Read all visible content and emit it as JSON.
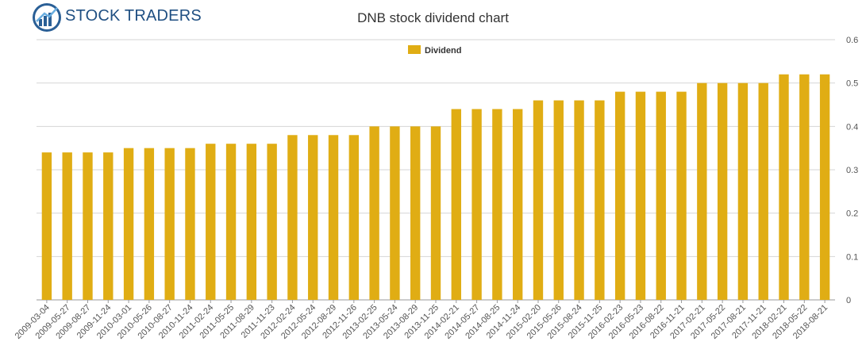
{
  "brand": {
    "name": "STOCK TRADERS"
  },
  "chart_data": {
    "type": "bar",
    "title": "DNB stock dividend chart",
    "xlabel": "",
    "ylabel": "",
    "ylim": [
      0,
      0.6
    ],
    "yticks": [
      "0",
      "0.1",
      "0.2",
      "0.3",
      "0.4",
      "0.5",
      "0.6"
    ],
    "grid": true,
    "legend_position": "top-center",
    "color": "#e0ad14",
    "categories": [
      "2009-03-04",
      "2009-05-27",
      "2009-08-27",
      "2009-11-24",
      "2010-03-01",
      "2010-05-26",
      "2010-08-27",
      "2010-11-24",
      "2011-02-24",
      "2011-05-25",
      "2011-08-29",
      "2011-11-23",
      "2012-02-24",
      "2012-05-24",
      "2012-08-29",
      "2012-11-26",
      "2013-02-25",
      "2013-05-24",
      "2013-08-29",
      "2013-11-25",
      "2014-02-21",
      "2014-05-27",
      "2014-08-25",
      "2014-11-24",
      "2015-02-20",
      "2015-05-26",
      "2015-08-24",
      "2015-11-25",
      "2016-02-23",
      "2016-05-23",
      "2016-08-22",
      "2016-11-21",
      "2017-02-21",
      "2017-05-22",
      "2017-08-21",
      "2017-11-21",
      "2018-02-21",
      "2018-05-22",
      "2018-08-21"
    ],
    "series": [
      {
        "name": "Dividend",
        "values": [
          0.34,
          0.34,
          0.34,
          0.34,
          0.35,
          0.35,
          0.35,
          0.35,
          0.36,
          0.36,
          0.36,
          0.36,
          0.38,
          0.38,
          0.38,
          0.38,
          0.4,
          0.4,
          0.4,
          0.4,
          0.44,
          0.44,
          0.44,
          0.44,
          0.46,
          0.46,
          0.46,
          0.46,
          0.48,
          0.48,
          0.48,
          0.48,
          0.5,
          0.5,
          0.5,
          0.5,
          0.52,
          0.52,
          0.52
        ]
      }
    ]
  }
}
